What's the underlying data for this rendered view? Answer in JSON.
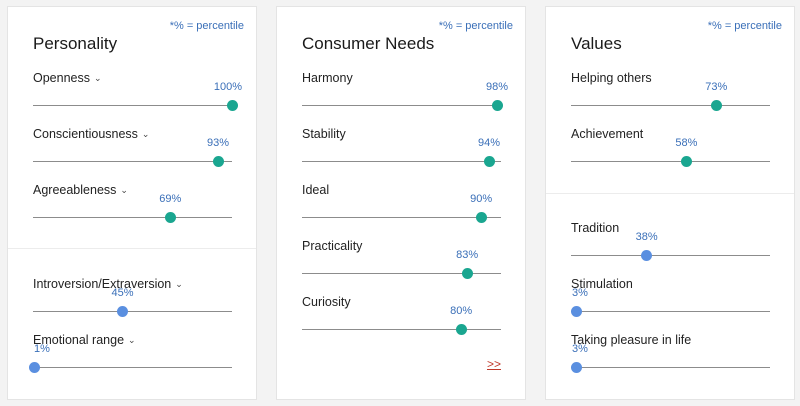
{
  "percentile_note": "*% = percentile",
  "personality": {
    "title": "Personality",
    "group_a": [
      {
        "label": "Openness",
        "value": 100,
        "display": "100%",
        "dropdown": true,
        "color": "green"
      },
      {
        "label": "Conscientiousness",
        "value": 93,
        "display": "93%",
        "dropdown": true,
        "color": "green"
      },
      {
        "label": "Agreeableness",
        "value": 69,
        "display": "69%",
        "dropdown": true,
        "color": "green"
      }
    ],
    "group_b": [
      {
        "label": "Introversion/Extraversion",
        "value": 45,
        "display": "45%",
        "dropdown": true,
        "color": "blue"
      },
      {
        "label": "Emotional range",
        "value": 1,
        "display": "1%",
        "dropdown": true,
        "color": "blue"
      }
    ]
  },
  "consumer_needs": {
    "title": "Consumer Needs",
    "items": [
      {
        "label": "Harmony",
        "value": 98,
        "display": "98%",
        "color": "green"
      },
      {
        "label": "Stability",
        "value": 94,
        "display": "94%",
        "color": "green"
      },
      {
        "label": "Ideal",
        "value": 90,
        "display": "90%",
        "color": "green"
      },
      {
        "label": "Practicality",
        "value": 83,
        "display": "83%",
        "color": "green"
      },
      {
        "label": "Curiosity",
        "value": 80,
        "display": "80%",
        "color": "green"
      }
    ],
    "more_link": ">>"
  },
  "values": {
    "title": "Values",
    "group_a": [
      {
        "label": "Helping others",
        "value": 73,
        "display": "73%",
        "color": "green"
      },
      {
        "label": "Achievement",
        "value": 58,
        "display": "58%",
        "color": "green"
      }
    ],
    "group_b": [
      {
        "label": "Tradition",
        "value": 38,
        "display": "38%",
        "color": "blue"
      },
      {
        "label": "Stimulation",
        "value": 3,
        "display": "3%",
        "color": "blue"
      },
      {
        "label": "Taking pleasure in life",
        "value": 3,
        "display": "3%",
        "color": "blue"
      }
    ]
  },
  "colors": {
    "green_dot": "#1aa690",
    "blue_dot": "#5a8fe0",
    "percent_text": "#3a6fb8",
    "more_link": "#c0392b"
  },
  "icons": {
    "dropdown": "chevron-down-icon"
  }
}
